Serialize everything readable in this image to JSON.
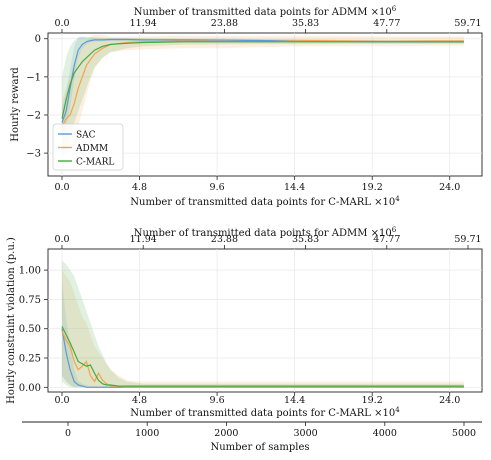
{
  "chart_data": [
    {
      "type": "line",
      "title": "",
      "top_axis": {
        "label": "Number of transmitted data points for ADMM",
        "multiplier": "×10",
        "multiplier_exp": "6",
        "ticks": [
          "0.0",
          "11.94",
          "23.88",
          "35.83",
          "47.77",
          "59.71"
        ]
      },
      "bottom_axis": {
        "label": "Number of transmitted data points for C-MARL",
        "multiplier": "×10",
        "multiplier_exp": "4",
        "ticks": [
          "0.0",
          "4.8",
          "9.6",
          "14.4",
          "19.2",
          "24.0"
        ]
      },
      "ylabel": "Hourly reward",
      "ylim": [
        -3.6,
        0.15
      ],
      "yticks": [
        "0",
        "−1",
        "−2",
        "−3"
      ],
      "ytick_values": [
        0,
        -1,
        -2,
        -3
      ],
      "legend": {
        "position": "lower-left"
      },
      "grid": true,
      "x_samples": [
        0,
        50,
        100,
        150,
        200,
        250,
        300,
        350,
        400,
        500,
        600,
        800,
        1000,
        1500,
        2000,
        2500,
        3000,
        3500,
        4000,
        4500,
        4950
      ],
      "series": [
        {
          "name": "SAC",
          "color": "#5b9bd5",
          "values": [
            -2.2,
            -1.9,
            -1.3,
            -0.7,
            -0.3,
            -0.15,
            -0.08,
            -0.05,
            -0.03,
            -0.03,
            -0.02,
            -0.02,
            -0.03,
            -0.03,
            -0.04,
            -0.05,
            -0.06,
            -0.07,
            -0.08,
            -0.08,
            -0.08
          ],
          "band_lower": [
            -2.6,
            -2.3,
            -1.8,
            -1.1,
            -0.5,
            -0.25,
            -0.15,
            -0.1,
            -0.08,
            -0.07,
            -0.06,
            -0.06,
            -0.07,
            -0.07,
            -0.08,
            -0.09,
            -0.1,
            -0.11,
            -0.12,
            -0.12,
            -0.12
          ],
          "band_upper": [
            -1.8,
            -1.4,
            -0.8,
            -0.2,
            0.05,
            0.05,
            0.02,
            0.01,
            0.01,
            0.01,
            0.01,
            0.01,
            0.0,
            0.0,
            0.0,
            -0.01,
            -0.02,
            -0.03,
            -0.04,
            -0.04,
            -0.04
          ]
        },
        {
          "name": "ADMM",
          "color": "#f5a34a",
          "values": [
            -2.3,
            -2.1,
            -2.0,
            -1.7,
            -1.3,
            -1.0,
            -0.7,
            -0.55,
            -0.4,
            -0.25,
            -0.15,
            -0.1,
            -0.08,
            -0.06,
            -0.07,
            -0.08,
            -0.05,
            -0.06,
            -0.07,
            -0.06,
            -0.06
          ],
          "band_lower": [
            -3.0,
            -3.0,
            -2.9,
            -2.7,
            -2.3,
            -1.9,
            -1.5,
            -1.1,
            -0.8,
            -0.5,
            -0.35,
            -0.3,
            -0.28,
            -0.25,
            -0.25,
            -0.22,
            -0.2,
            -0.2,
            -0.2,
            -0.18,
            -0.18
          ],
          "band_upper": [
            -1.6,
            -1.3,
            -1.0,
            -0.7,
            -0.4,
            -0.2,
            -0.05,
            0.05,
            0.1,
            0.1,
            0.05,
            0.05,
            0.06,
            0.08,
            0.08,
            0.08,
            0.08,
            0.08,
            0.06,
            0.06,
            0.06
          ]
        },
        {
          "name": "C-MARL",
          "color": "#44aa44",
          "values": [
            -2.1,
            -1.6,
            -1.2,
            -0.9,
            -0.75,
            -0.6,
            -0.5,
            -0.4,
            -0.3,
            -0.2,
            -0.15,
            -0.12,
            -0.1,
            -0.08,
            -0.08,
            -0.08,
            -0.08,
            -0.08,
            -0.08,
            -0.08,
            -0.08
          ],
          "band_lower": [
            -3.2,
            -2.9,
            -2.6,
            -2.2,
            -1.9,
            -1.6,
            -1.3,
            -1.0,
            -0.75,
            -0.5,
            -0.35,
            -0.25,
            -0.2,
            -0.16,
            -0.15,
            -0.14,
            -0.14,
            -0.13,
            -0.13,
            -0.13,
            -0.13
          ],
          "band_upper": [
            -1.0,
            -0.5,
            -0.2,
            -0.05,
            0.02,
            0.05,
            0.05,
            0.05,
            0.04,
            0.03,
            0.02,
            0.02,
            0.01,
            0.0,
            0.0,
            -0.01,
            -0.02,
            -0.03,
            -0.03,
            -0.03,
            -0.03
          ]
        }
      ]
    },
    {
      "type": "line",
      "title": "",
      "top_axis": {
        "label": "Number of transmitted data points for ADMM",
        "multiplier": "×10",
        "multiplier_exp": "6",
        "ticks": [
          "0.0",
          "11.94",
          "23.88",
          "35.83",
          "47.77",
          "59.71"
        ]
      },
      "bottom_axis": {
        "label": "Number of transmitted data points for C-MARL",
        "multiplier": "×10",
        "multiplier_exp": "4",
        "ticks": [
          "0.0",
          "4.8",
          "9.6",
          "14.4",
          "19.2",
          "24.0"
        ]
      },
      "samples_axis": {
        "label": "Number of samples",
        "ticks": [
          "0",
          "1000",
          "2000",
          "3000",
          "4000",
          "5000"
        ]
      },
      "ylabel": "Hourly constraint violation (p.u.)",
      "ylim": [
        -0.04,
        1.18
      ],
      "yticks": [
        "0.00",
        "0.25",
        "0.50",
        "0.75",
        "1.00"
      ],
      "ytick_values": [
        0,
        0.25,
        0.5,
        0.75,
        1.0
      ],
      "grid": true,
      "x_samples": [
        0,
        50,
        100,
        150,
        200,
        250,
        300,
        350,
        400,
        450,
        500,
        550,
        600,
        700,
        800,
        1000,
        1500,
        2000,
        2500,
        3000,
        3500,
        4000,
        4500,
        4950
      ],
      "series": [
        {
          "name": "SAC",
          "color": "#5b9bd5",
          "values": [
            0.5,
            0.3,
            0.15,
            0.05,
            0.02,
            0.01,
            0.0,
            0.0,
            0.0,
            0.0,
            0.0,
            0.0,
            0.0,
            0.0,
            0.0,
            0.0,
            0.0,
            0.0,
            0.0,
            0.0,
            0.0,
            0.0,
            0.0,
            0.0
          ],
          "band_lower": [
            0.1,
            0.05,
            0.02,
            0.0,
            0.0,
            0.0,
            0.0,
            0.0,
            0.0,
            0.0,
            0.0,
            0.0,
            0.0,
            0.0,
            0.0,
            0.0,
            0.0,
            0.0,
            0.0,
            0.0,
            0.0,
            0.0,
            0.0,
            0.0
          ],
          "band_upper": [
            0.9,
            0.6,
            0.35,
            0.15,
            0.06,
            0.03,
            0.02,
            0.01,
            0.01,
            0.01,
            0.01,
            0.01,
            0.01,
            0.01,
            0.01,
            0.01,
            0.01,
            0.01,
            0.01,
            0.01,
            0.01,
            0.01,
            0.01,
            0.01
          ]
        },
        {
          "name": "ADMM",
          "color": "#f5a34a",
          "values": [
            0.48,
            0.4,
            0.35,
            0.22,
            0.15,
            0.18,
            0.22,
            0.1,
            0.05,
            0.12,
            0.06,
            0.03,
            0.01,
            0.01,
            0.0,
            0.0,
            0.0,
            0.0,
            0.0,
            0.0,
            0.0,
            0.0,
            0.0,
            0.0
          ],
          "band_lower": [
            0.1,
            0.05,
            0.02,
            0.0,
            0.0,
            0.0,
            0.0,
            0.0,
            0.0,
            0.0,
            0.0,
            0.0,
            0.0,
            0.0,
            0.0,
            0.0,
            0.0,
            0.0,
            0.0,
            0.0,
            0.0,
            0.0,
            0.0,
            0.0
          ],
          "band_upper": [
            1.0,
            0.95,
            0.9,
            0.8,
            0.7,
            0.6,
            0.55,
            0.45,
            0.35,
            0.3,
            0.25,
            0.2,
            0.15,
            0.1,
            0.06,
            0.05,
            0.05,
            0.05,
            0.05,
            0.05,
            0.05,
            0.05,
            0.05,
            0.05
          ]
        },
        {
          "name": "C-MARL",
          "color": "#44aa44",
          "values": [
            0.52,
            0.45,
            0.38,
            0.3,
            0.22,
            0.2,
            0.18,
            0.19,
            0.12,
            0.06,
            0.03,
            0.02,
            0.02,
            0.01,
            0.01,
            0.01,
            0.01,
            0.01,
            0.01,
            0.01,
            0.01,
            0.01,
            0.01,
            0.01
          ],
          "band_lower": [
            0.05,
            0.02,
            0.0,
            0.0,
            0.0,
            0.0,
            0.0,
            0.0,
            0.0,
            0.0,
            0.0,
            0.0,
            0.0,
            0.0,
            0.0,
            0.0,
            0.0,
            0.0,
            0.0,
            0.0,
            0.0,
            0.0,
            0.0,
            0.0
          ],
          "band_upper": [
            1.08,
            1.05,
            1.0,
            0.95,
            0.85,
            0.75,
            0.65,
            0.55,
            0.45,
            0.35,
            0.28,
            0.2,
            0.15,
            0.08,
            0.05,
            0.03,
            0.03,
            0.03,
            0.03,
            0.03,
            0.03,
            0.03,
            0.03,
            0.03
          ]
        }
      ]
    }
  ]
}
